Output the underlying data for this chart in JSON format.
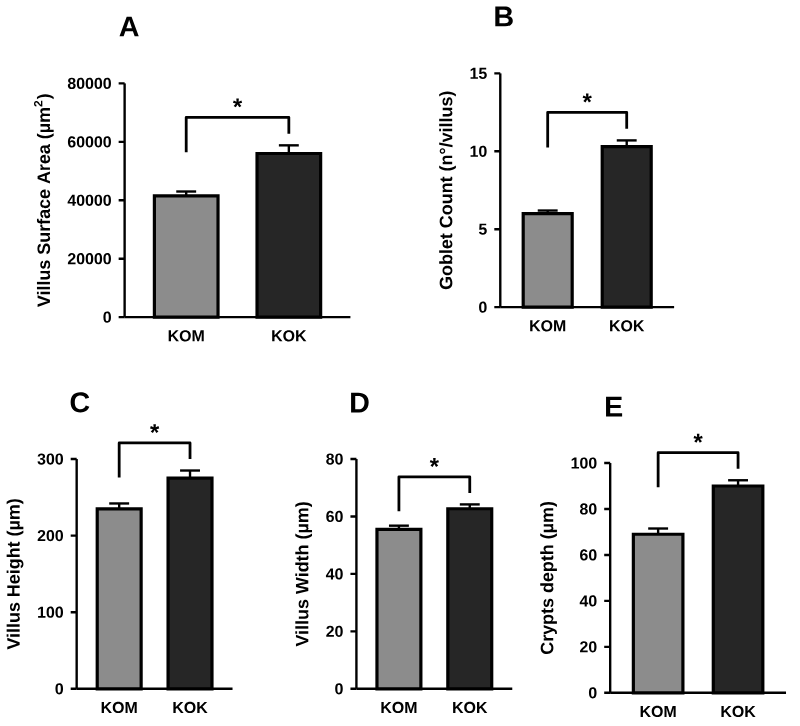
{
  "chart_data": [
    {
      "type": "bar",
      "title": "A",
      "ylabel": "Villus Surface Area (µm$^{2}$)",
      "categories": [
        "KOM",
        "KOK"
      ],
      "values": [
        41500,
        56000
      ],
      "errors": [
        1500,
        2800
      ],
      "colors": [
        "#8c8c8c",
        "#262626"
      ],
      "ylim": [
        0,
        80000
      ],
      "yticks": [
        0,
        20000,
        40000,
        60000,
        80000
      ],
      "annotations": [
        "*"
      ]
    },
    {
      "type": "bar",
      "title": "B",
      "ylabel": "Goblet Count (n°/villus)",
      "categories": [
        "KOM",
        "KOK"
      ],
      "values": [
        6.0,
        10.3
      ],
      "errors": [
        0.2,
        0.4
      ],
      "colors": [
        "#8c8c8c",
        "#262626"
      ],
      "ylim": [
        0,
        15
      ],
      "yticks": [
        0,
        5,
        10,
        15
      ],
      "annotations": [
        "*"
      ]
    },
    {
      "type": "bar",
      "title": "C",
      "ylabel": "Villus Height (µm)",
      "categories": [
        "KOM",
        "KOK"
      ],
      "values": [
        235,
        275
      ],
      "errors": [
        7,
        10
      ],
      "colors": [
        "#8c8c8c",
        "#262626"
      ],
      "ylim": [
        0,
        300
      ],
      "yticks": [
        0,
        100,
        200,
        300
      ],
      "annotations": [
        "*"
      ]
    },
    {
      "type": "bar",
      "title": "D",
      "ylabel": "Villus Width (µm)",
      "categories": [
        "KOM",
        "KOK"
      ],
      "values": [
        55.5,
        62.7
      ],
      "errors": [
        1.3,
        1.5
      ],
      "colors": [
        "#8c8c8c",
        "#262626"
      ],
      "ylim": [
        0,
        80
      ],
      "yticks": [
        0,
        20,
        40,
        60,
        80
      ],
      "annotations": [
        "*"
      ]
    },
    {
      "type": "bar",
      "title": "E",
      "ylabel": "Crypts depth (µm)",
      "categories": [
        "KOM",
        "KOK"
      ],
      "values": [
        69,
        90
      ],
      "errors": [
        2.5,
        2.5
      ],
      "colors": [
        "#8c8c8c",
        "#262626"
      ],
      "ylim": [
        0,
        100
      ],
      "yticks": [
        0,
        20,
        40,
        60,
        80,
        100
      ],
      "annotations": [
        "*"
      ]
    }
  ]
}
